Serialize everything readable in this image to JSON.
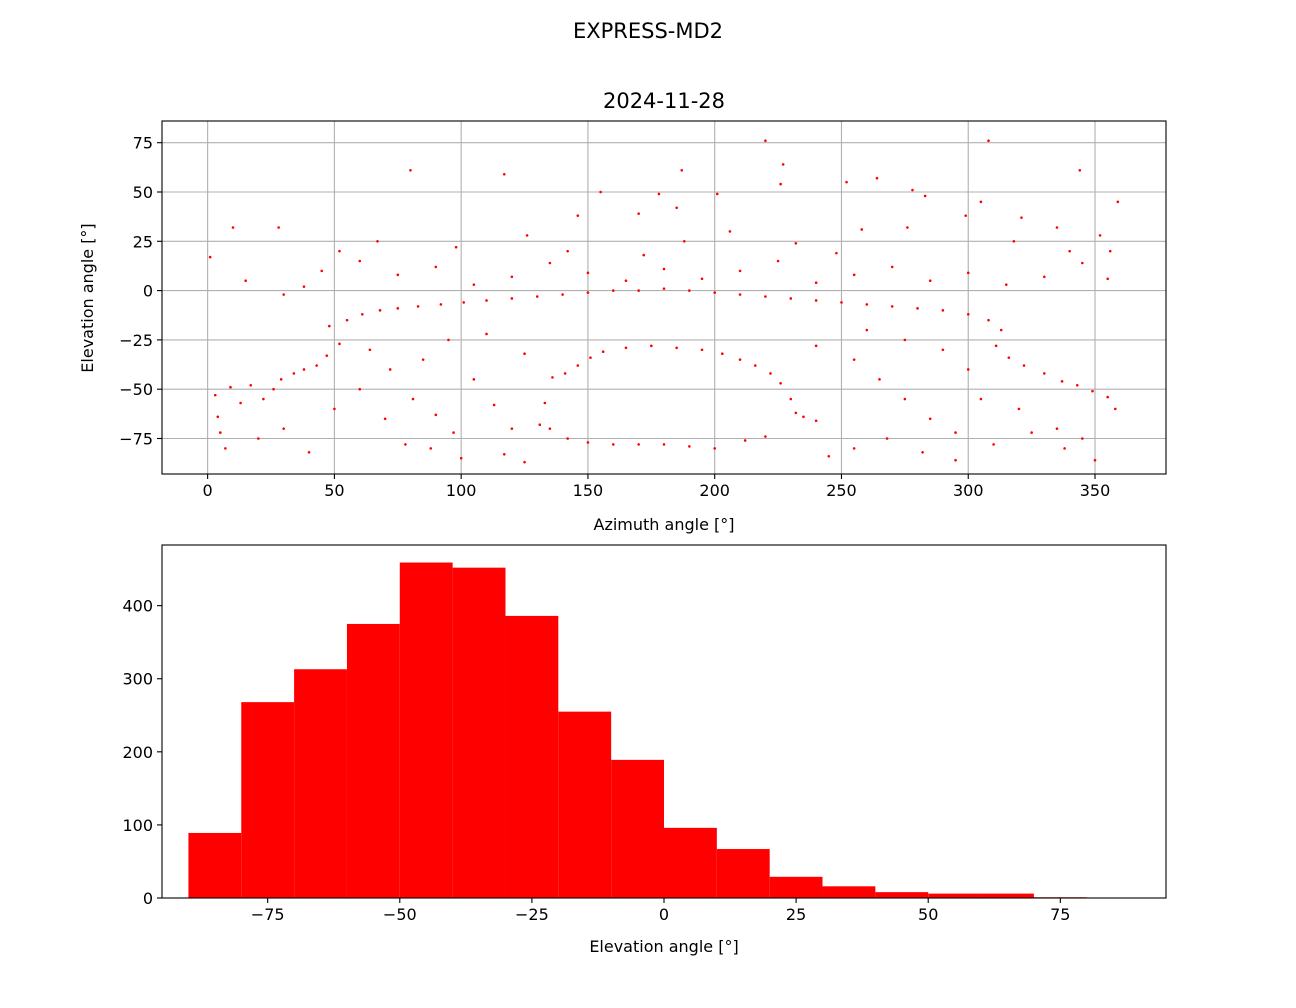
{
  "figure": {
    "suptitle": "EXPRESS-MD2"
  },
  "chart_data": [
    {
      "type": "scatter",
      "title": "2024-11-28",
      "xlabel": "Azimuth angle [°]",
      "ylabel": "Elevation angle [°]",
      "xlim": [
        -18,
        378
      ],
      "ylim": [
        -93,
        86
      ],
      "xticks": [
        0,
        50,
        100,
        150,
        200,
        250,
        300,
        350
      ],
      "yticks": [
        -75,
        -50,
        -25,
        0,
        25,
        50,
        75
      ],
      "grid": true,
      "marker_color": "#ff0000",
      "outliers": [
        [
          80,
          61
        ],
        [
          117,
          59
        ],
        [
          187,
          61
        ],
        [
          220,
          76
        ],
        [
          227,
          64
        ],
        [
          308,
          76
        ],
        [
          344,
          61
        ],
        [
          359,
          45
        ],
        [
          185,
          42
        ],
        [
          201,
          49
        ],
        [
          155,
          50
        ],
        [
          178,
          49
        ],
        [
          278,
          51
        ],
        [
          252,
          55
        ],
        [
          264,
          57
        ],
        [
          226,
          54
        ],
        [
          146,
          38
        ],
        [
          170,
          39
        ],
        [
          299,
          38
        ],
        [
          305,
          45
        ],
        [
          283,
          48
        ],
        [
          10,
          32
        ],
        [
          28,
          32
        ],
        [
          1,
          17
        ],
        [
          126,
          28
        ],
        [
          188,
          25
        ],
        [
          206,
          30
        ],
        [
          258,
          31
        ],
        [
          276,
          32
        ],
        [
          321,
          37
        ],
        [
          335,
          32
        ],
        [
          352,
          28
        ]
      ],
      "points": [
        [
          3,
          -53
        ],
        [
          4,
          -64
        ],
        [
          5,
          -72
        ],
        [
          7,
          -80
        ],
        [
          9,
          -49
        ],
        [
          13,
          -57
        ],
        [
          17,
          -48
        ],
        [
          22,
          -55
        ],
        [
          26,
          -50
        ],
        [
          29,
          -45
        ],
        [
          34,
          -42
        ],
        [
          38,
          -40
        ],
        [
          43,
          -38
        ],
        [
          47,
          -33
        ],
        [
          52,
          -27
        ],
        [
          48,
          -18
        ],
        [
          55,
          -15
        ],
        [
          61,
          -12
        ],
        [
          68,
          -10
        ],
        [
          75,
          -9
        ],
        [
          83,
          -8
        ],
        [
          92,
          -7
        ],
        [
          101,
          -6
        ],
        [
          110,
          -5
        ],
        [
          120,
          -4
        ],
        [
          130,
          -3
        ],
        [
          140,
          -2
        ],
        [
          150,
          -1
        ],
        [
          160,
          0
        ],
        [
          170,
          0
        ],
        [
          180,
          1
        ],
        [
          190,
          0
        ],
        [
          200,
          -1
        ],
        [
          210,
          -2
        ],
        [
          220,
          -3
        ],
        [
          230,
          -4
        ],
        [
          240,
          -5
        ],
        [
          250,
          -6
        ],
        [
          260,
          -7
        ],
        [
          270,
          -8
        ],
        [
          280,
          -9
        ],
        [
          290,
          -10
        ],
        [
          300,
          -12
        ],
        [
          308,
          -15
        ],
        [
          313,
          -20
        ],
        [
          311,
          -28
        ],
        [
          316,
          -34
        ],
        [
          322,
          -38
        ],
        [
          330,
          -42
        ],
        [
          337,
          -46
        ],
        [
          343,
          -48
        ],
        [
          349,
          -51
        ],
        [
          355,
          -54
        ],
        [
          358,
          -60
        ],
        [
          136,
          -44
        ],
        [
          141,
          -42
        ],
        [
          146,
          -38
        ],
        [
          151,
          -34
        ],
        [
          156,
          -31
        ],
        [
          165,
          -29
        ],
        [
          175,
          -28
        ],
        [
          185,
          -29
        ],
        [
          195,
          -30
        ],
        [
          203,
          -32
        ],
        [
          210,
          -35
        ],
        [
          216,
          -38
        ],
        [
          222,
          -42
        ],
        [
          226,
          -47
        ],
        [
          230,
          -55
        ],
        [
          232,
          -62
        ],
        [
          235,
          -64
        ],
        [
          240,
          -66
        ],
        [
          133,
          -57
        ],
        [
          131,
          -68
        ],
        [
          135,
          -70
        ],
        [
          142,
          -75
        ],
        [
          150,
          -77
        ],
        [
          160,
          -78
        ],
        [
          170,
          -78
        ],
        [
          180,
          -78
        ],
        [
          190,
          -79
        ],
        [
          200,
          -80
        ],
        [
          212,
          -76
        ],
        [
          220,
          -74
        ],
        [
          64,
          -30
        ],
        [
          72,
          -40
        ],
        [
          81,
          -55
        ],
        [
          90,
          -63
        ],
        [
          97,
          -72
        ],
        [
          105,
          -45
        ],
        [
          113,
          -58
        ],
        [
          120,
          -70
        ],
        [
          95,
          -25
        ],
        [
          85,
          -35
        ],
        [
          110,
          -22
        ],
        [
          125,
          -32
        ],
        [
          240,
          -28
        ],
        [
          255,
          -35
        ],
        [
          265,
          -45
        ],
        [
          275,
          -55
        ],
        [
          285,
          -65
        ],
        [
          295,
          -72
        ],
        [
          260,
          -20
        ],
        [
          275,
          -25
        ],
        [
          290,
          -30
        ],
        [
          300,
          -40
        ],
        [
          305,
          -55
        ],
        [
          320,
          -60
        ],
        [
          335,
          -70
        ],
        [
          345,
          -75
        ],
        [
          30,
          -70
        ],
        [
          20,
          -75
        ],
        [
          40,
          -82
        ],
        [
          50,
          -60
        ],
        [
          60,
          -50
        ],
        [
          70,
          -65
        ],
        [
          78,
          -78
        ],
        [
          88,
          -80
        ],
        [
          100,
          -85
        ],
        [
          117,
          -83
        ],
        [
          125,
          -87
        ],
        [
          245,
          -84
        ],
        [
          255,
          -80
        ],
        [
          268,
          -75
        ],
        [
          282,
          -82
        ],
        [
          295,
          -86
        ],
        [
          310,
          -78
        ],
        [
          325,
          -72
        ],
        [
          338,
          -80
        ],
        [
          350,
          -86
        ],
        [
          15,
          5
        ],
        [
          30,
          -2
        ],
        [
          45,
          10
        ],
        [
          60,
          15
        ],
        [
          75,
          8
        ],
        [
          90,
          12
        ],
        [
          105,
          3
        ],
        [
          120,
          7
        ],
        [
          135,
          14
        ],
        [
          150,
          9
        ],
        [
          165,
          5
        ],
        [
          180,
          11
        ],
        [
          195,
          6
        ],
        [
          210,
          10
        ],
        [
          225,
          15
        ],
        [
          240,
          4
        ],
        [
          255,
          8
        ],
        [
          270,
          12
        ],
        [
          285,
          5
        ],
        [
          300,
          9
        ],
        [
          315,
          3
        ],
        [
          330,
          7
        ],
        [
          345,
          14
        ],
        [
          355,
          6
        ],
        [
          38,
          2
        ],
        [
          52,
          20
        ],
        [
          67,
          25
        ],
        [
          98,
          22
        ],
        [
          142,
          20
        ],
        [
          172,
          18
        ],
        [
          232,
          24
        ],
        [
          248,
          19
        ],
        [
          318,
          25
        ],
        [
          340,
          20
        ],
        [
          356,
          20
        ]
      ]
    },
    {
      "type": "bar",
      "xlabel": "Elevation angle [°]",
      "ylabel": "",
      "xlim": [
        -95,
        95
      ],
      "ylim": [
        0,
        483
      ],
      "xticks": [
        -75,
        -50,
        -25,
        0,
        25,
        50,
        75
      ],
      "yticks": [
        0,
        100,
        200,
        300,
        400
      ],
      "grid": false,
      "bar_color": "#ff0000",
      "bins": [
        {
          "from": -90,
          "to": -80,
          "count": 89
        },
        {
          "from": -80,
          "to": -70,
          "count": 268
        },
        {
          "from": -70,
          "to": -60,
          "count": 313
        },
        {
          "from": -60,
          "to": -50,
          "count": 375
        },
        {
          "from": -50,
          "to": -40,
          "count": 459
        },
        {
          "from": -40,
          "to": -30,
          "count": 452
        },
        {
          "from": -30,
          "to": -20,
          "count": 386
        },
        {
          "from": -20,
          "to": -10,
          "count": 255
        },
        {
          "from": -10,
          "to": 0,
          "count": 189
        },
        {
          "from": 0,
          "to": 10,
          "count": 96
        },
        {
          "from": 10,
          "to": 20,
          "count": 67
        },
        {
          "from": 20,
          "to": 30,
          "count": 29
        },
        {
          "from": 30,
          "to": 40,
          "count": 16
        },
        {
          "from": 40,
          "to": 50,
          "count": 8
        },
        {
          "from": 50,
          "to": 60,
          "count": 6
        },
        {
          "from": 60,
          "to": 70,
          "count": 6
        },
        {
          "from": 70,
          "to": 80,
          "count": 1
        },
        {
          "from": 80,
          "to": 90,
          "count": 0
        }
      ]
    }
  ]
}
